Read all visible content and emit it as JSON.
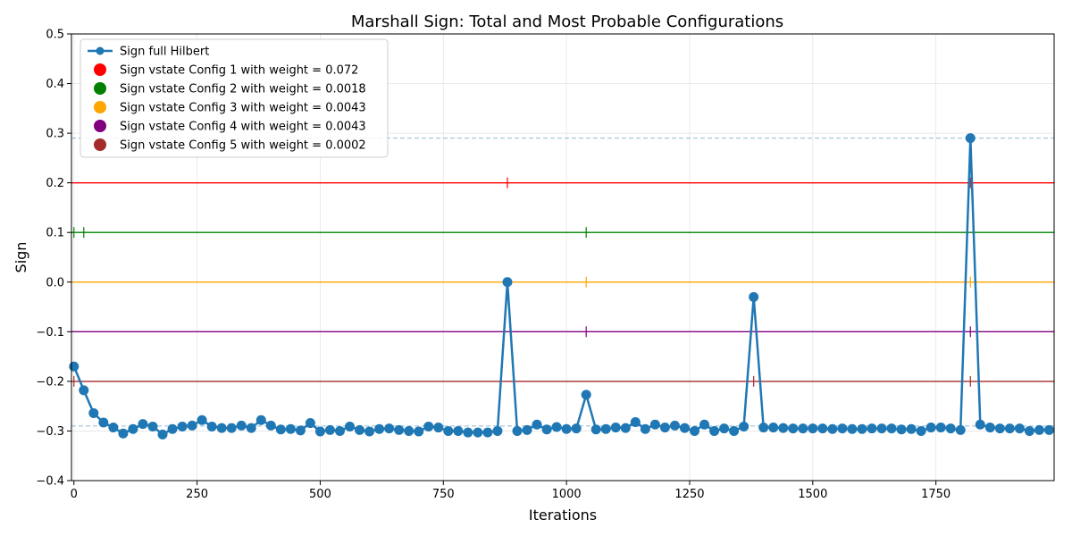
{
  "chart_data": {
    "type": "line",
    "title": "Marshall Sign: Total and Most Probable Configurations",
    "xlabel": "Iterations",
    "ylabel": "Sign",
    "xlim": [
      -5,
      1990
    ],
    "ylim": [
      -0.4,
      0.5
    ],
    "xticks": [
      0,
      250,
      500,
      750,
      1000,
      1250,
      1500,
      1750
    ],
    "yticks": [
      -0.4,
      -0.3,
      -0.2,
      -0.1,
      0.0,
      0.1,
      0.2,
      0.3,
      0.4,
      0.5
    ],
    "xtick_labels": [
      "0",
      "250",
      "500",
      "750",
      "1000",
      "1250",
      "1500",
      "1750"
    ],
    "ytick_labels": [
      "−0.4",
      "−0.3",
      "−0.2",
      "−0.1",
      "0.0",
      "0.1",
      "0.2",
      "0.3",
      "0.4",
      "0.5"
    ],
    "grid": true,
    "legend_position": "upper-left",
    "main_series": {
      "name": "Sign full Hilbert",
      "color": "#1f77b4",
      "x": [
        0,
        20,
        40,
        60,
        80,
        100,
        120,
        140,
        160,
        180,
        200,
        220,
        240,
        260,
        280,
        300,
        320,
        340,
        360,
        380,
        400,
        420,
        440,
        460,
        480,
        500,
        520,
        540,
        560,
        580,
        600,
        620,
        640,
        660,
        680,
        700,
        720,
        740,
        760,
        780,
        800,
        820,
        840,
        860,
        880,
        900,
        920,
        940,
        960,
        980,
        1000,
        1020,
        1040,
        1060,
        1080,
        1100,
        1120,
        1140,
        1160,
        1180,
        1200,
        1220,
        1240,
        1260,
        1280,
        1300,
        1320,
        1340,
        1360,
        1380,
        1400,
        1420,
        1440,
        1460,
        1480,
        1500,
        1520,
        1540,
        1560,
        1580,
        1600,
        1620,
        1640,
        1660,
        1680,
        1700,
        1720,
        1740,
        1760,
        1780,
        1800,
        1820,
        1840,
        1860,
        1880,
        1900,
        1920,
        1940,
        1960,
        1980
      ],
      "y": [
        -0.17,
        -0.218,
        -0.264,
        -0.283,
        -0.293,
        -0.305,
        -0.296,
        -0.286,
        -0.291,
        -0.307,
        -0.296,
        -0.291,
        -0.289,
        -0.278,
        -0.291,
        -0.294,
        -0.294,
        -0.289,
        -0.294,
        -0.278,
        -0.289,
        -0.297,
        -0.296,
        -0.299,
        -0.284,
        -0.301,
        -0.298,
        -0.3,
        -0.291,
        -0.298,
        -0.301,
        -0.296,
        -0.295,
        -0.298,
        -0.3,
        -0.301,
        -0.291,
        -0.293,
        -0.3,
        -0.3,
        -0.303,
        -0.303,
        -0.303,
        -0.3,
        0.0,
        -0.3,
        -0.298,
        -0.287,
        -0.297,
        -0.292,
        -0.296,
        -0.295,
        -0.227,
        -0.297,
        -0.296,
        -0.293,
        -0.294,
        -0.282,
        -0.296,
        -0.287,
        -0.293,
        -0.289,
        -0.294,
        -0.3,
        -0.287,
        -0.3,
        -0.295,
        -0.3,
        -0.291,
        -0.03,
        -0.293,
        -0.293,
        -0.294,
        -0.295,
        -0.295,
        -0.295,
        -0.295,
        -0.296,
        -0.295,
        -0.296,
        -0.296,
        -0.295,
        -0.295,
        -0.295,
        -0.297,
        -0.296,
        -0.3,
        -0.293,
        -0.293,
        -0.295,
        -0.298,
        0.29,
        -0.287,
        -0.293,
        -0.295,
        -0.295,
        -0.295,
        -0.3,
        -0.298,
        -0.298
      ]
    },
    "reference_lines": [
      {
        "y": 0.29,
        "color": "#1f77b4"
      },
      {
        "y": -0.29,
        "color": "#1f77b4"
      }
    ],
    "config_series": [
      {
        "name": "Sign vstate Config 1 with weight = 0.072",
        "color": "#ff0000",
        "level": 0.2,
        "ticks": [
          880,
          1820
        ]
      },
      {
        "name": "Sign vstate Config 2 with weight = 0.0018",
        "color": "#008000",
        "level": 0.1,
        "ticks": [
          0,
          20,
          1040
        ]
      },
      {
        "name": "Sign vstate Config 3 with weight = 0.0043",
        "color": "#ffa500",
        "level": 0.0,
        "ticks": [
          1040,
          1820
        ]
      },
      {
        "name": "Sign vstate Config 4 with weight = 0.0043",
        "color": "#800080",
        "level": -0.1,
        "ticks": [
          1040,
          1820
        ]
      },
      {
        "name": "Sign vstate Config 5 with weight = 0.0002",
        "color": "#a52a2a",
        "level": -0.2,
        "ticks": [
          0,
          1380,
          1820
        ]
      }
    ]
  }
}
